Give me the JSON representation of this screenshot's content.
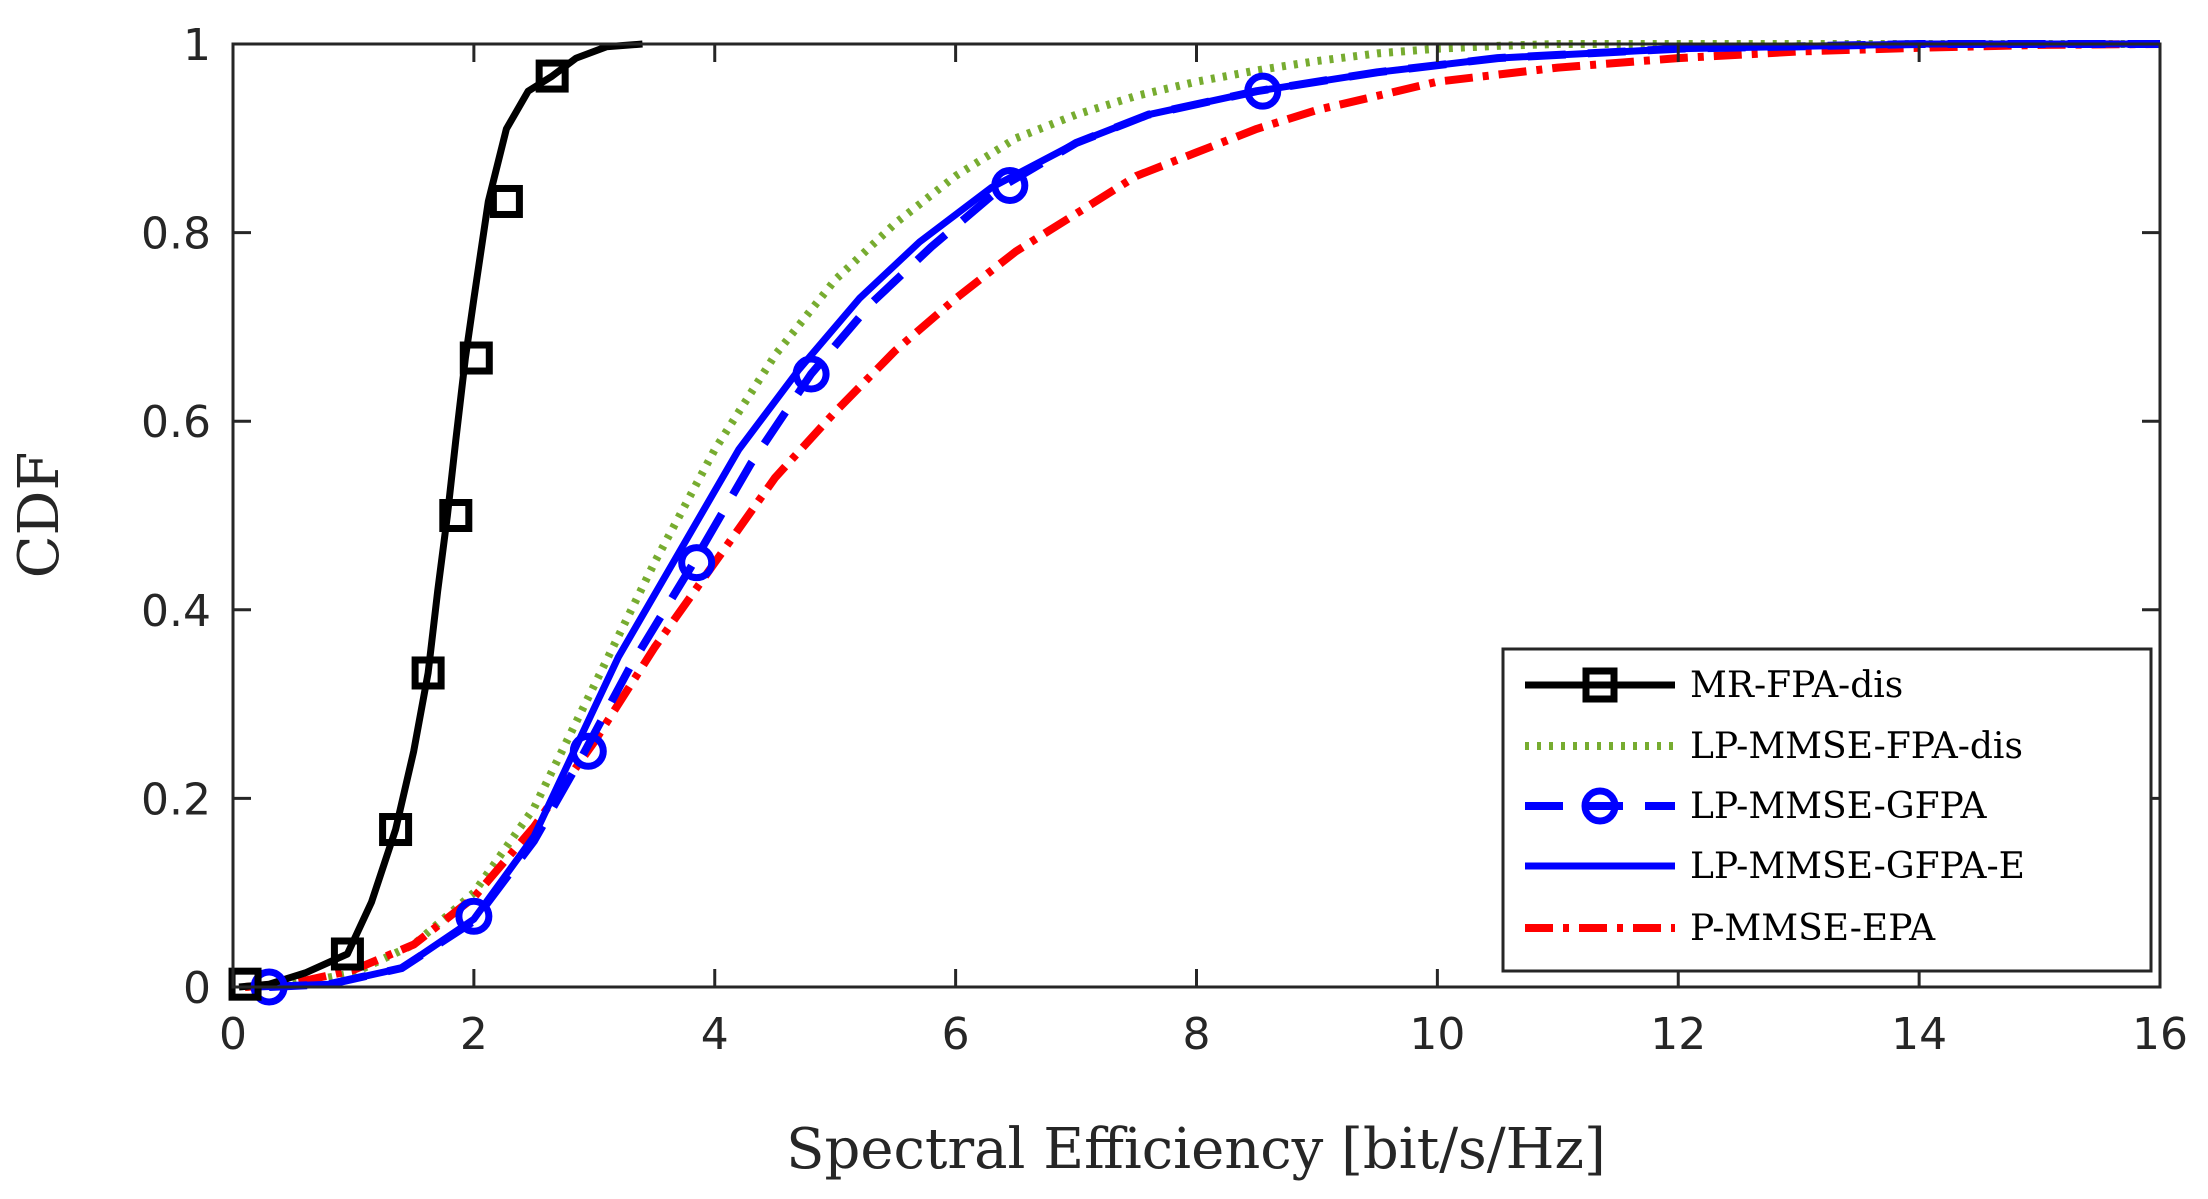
{
  "chart_data": {
    "type": "line",
    "title": "",
    "xlabel": "Spectral Efficiency [bit/s/Hz]",
    "ylabel": "CDF",
    "xlim": [
      0,
      16
    ],
    "ylim": [
      0,
      1
    ],
    "xticks": [
      0,
      2,
      4,
      6,
      8,
      10,
      12,
      14,
      16
    ],
    "yticks": [
      0,
      0.2,
      0.4,
      0.6,
      0.8,
      1
    ],
    "xtick_labels": [
      "0",
      "2",
      "4",
      "6",
      "8",
      "10",
      "12",
      "14",
      "16"
    ],
    "ytick_labels": [
      "0",
      "0.2",
      "0.4",
      "0.6",
      "0.8",
      "1"
    ],
    "grid": false,
    "legend_position": "bottom-right",
    "series": [
      {
        "name": "MR-FPA-dis",
        "color": "#000000",
        "style": "solid",
        "marker": "square",
        "x": [
          0.05,
          0.3,
          0.6,
          0.95,
          1.15,
          1.35,
          1.5,
          1.62,
          1.7,
          1.78,
          1.85,
          1.93,
          2.0,
          2.12,
          2.27,
          2.45,
          2.65,
          2.85,
          3.1,
          3.4
        ],
        "y": [
          0,
          0.003,
          0.015,
          0.035,
          0.09,
          0.167,
          0.25,
          0.333,
          0.42,
          0.5,
          0.58,
          0.667,
          0.73,
          0.833,
          0.91,
          0.95,
          0.966,
          0.985,
          0.997,
          1.0
        ],
        "marker_x": [
          0.1,
          0.95,
          1.35,
          1.62,
          1.85,
          2.02,
          2.27,
          2.65
        ],
        "marker_y": [
          0.003,
          0.035,
          0.167,
          0.333,
          0.5,
          0.667,
          0.833,
          0.966
        ]
      },
      {
        "name": "LP-MMSE-FPA-dis",
        "color": "#77AC30",
        "style": "dotted",
        "marker": "none",
        "x": [
          0.1,
          0.5,
          1.0,
          1.5,
          2.0,
          2.5,
          3.0,
          3.5,
          4.0,
          4.5,
          5.0,
          5.5,
          6.0,
          6.5,
          7.0,
          7.5,
          8.0,
          8.5,
          9.0,
          9.5,
          10.0,
          10.5,
          11.0,
          12.0,
          14.0,
          16.0
        ],
        "y": [
          0,
          0.003,
          0.015,
          0.045,
          0.1,
          0.19,
          0.32,
          0.45,
          0.57,
          0.67,
          0.75,
          0.81,
          0.86,
          0.9,
          0.925,
          0.945,
          0.96,
          0.972,
          0.982,
          0.99,
          0.995,
          0.998,
          1.0,
          1.0,
          1.0,
          1.0
        ]
      },
      {
        "name": "LP-MMSE-GFPA",
        "color": "#0000FF",
        "style": "dashed",
        "marker": "circle",
        "x": [
          0.3,
          0.8,
          1.4,
          2.0,
          2.5,
          2.9,
          3.3,
          3.8,
          4.3,
          4.8,
          5.3,
          5.8,
          6.4,
          7.0,
          7.6,
          8.5,
          9.5,
          10.5,
          12.0,
          14.0,
          16.0
        ],
        "y": [
          0,
          0.003,
          0.02,
          0.07,
          0.155,
          0.245,
          0.34,
          0.445,
          0.555,
          0.65,
          0.725,
          0.785,
          0.85,
          0.895,
          0.925,
          0.95,
          0.97,
          0.985,
          0.995,
          1.0,
          1.0
        ],
        "marker_x": [
          0.3,
          2.0,
          2.95,
          3.85,
          4.8,
          6.45,
          8.55
        ],
        "marker_y": [
          0.0,
          0.075,
          0.25,
          0.45,
          0.65,
          0.85,
          0.95
        ]
      },
      {
        "name": "LP-MMSE-GFPA-E",
        "color": "#0000FF",
        "style": "solid",
        "marker": "none",
        "x": [
          0.2,
          0.8,
          1.4,
          2.0,
          2.5,
          2.85,
          3.2,
          3.7,
          4.2,
          4.7,
          5.2,
          5.7,
          6.3,
          7.0,
          7.6,
          8.5,
          9.5,
          10.5,
          12.0,
          14.0,
          16.0
        ],
        "y": [
          0,
          0.003,
          0.02,
          0.072,
          0.16,
          0.255,
          0.35,
          0.46,
          0.57,
          0.655,
          0.73,
          0.79,
          0.848,
          0.895,
          0.925,
          0.95,
          0.97,
          0.985,
          0.995,
          1.0,
          1.0
        ],
        "marker_x": [],
        "marker_y": []
      },
      {
        "name": "P-MMSE-EPA",
        "color": "#FF0000",
        "style": "dashdot",
        "marker": "none",
        "x": [
          0.1,
          0.5,
          1.0,
          1.5,
          2.0,
          2.5,
          3.0,
          3.5,
          4.0,
          4.5,
          5.0,
          5.5,
          6.0,
          6.5,
          7.0,
          7.5,
          8.0,
          8.5,
          9.0,
          9.5,
          10.0,
          11.0,
          12.0,
          13.0,
          14.0,
          15.0,
          16.0
        ],
        "y": [
          0,
          0.004,
          0.018,
          0.045,
          0.095,
          0.17,
          0.26,
          0.36,
          0.45,
          0.54,
          0.61,
          0.675,
          0.73,
          0.78,
          0.82,
          0.86,
          0.885,
          0.91,
          0.93,
          0.945,
          0.96,
          0.975,
          0.985,
          0.992,
          0.996,
          0.999,
          1.0
        ]
      }
    ]
  }
}
